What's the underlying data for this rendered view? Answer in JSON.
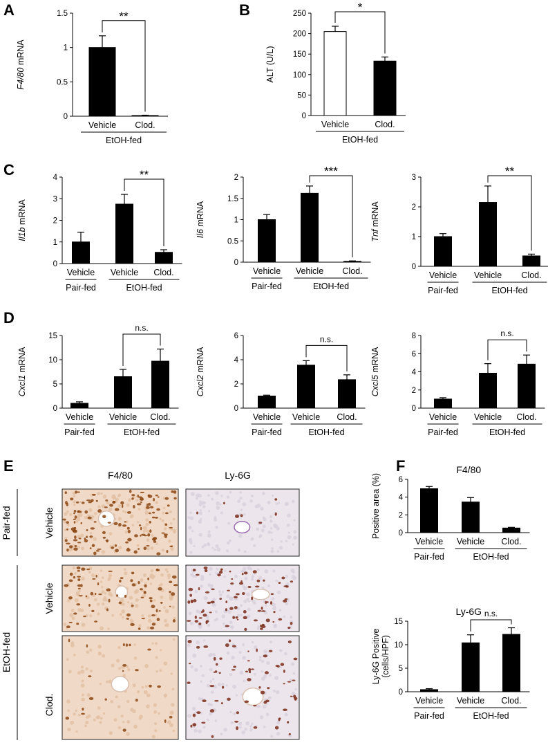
{
  "panels": {
    "A": {
      "label": "A"
    },
    "B": {
      "label": "B"
    },
    "C": {
      "label": "C"
    },
    "D": {
      "label": "D"
    },
    "E": {
      "label": "E"
    },
    "F": {
      "label": "F"
    }
  },
  "chart_data": [
    {
      "id": "A",
      "type": "bar",
      "categories": [
        "Vehicle",
        "Clod."
      ],
      "values": [
        1.0,
        0.01
      ],
      "errors": [
        0.17,
        0.005
      ],
      "ylabel_italic": "F4/80",
      "ylabel_rest": " mRNA",
      "ylim": [
        0,
        1.5
      ],
      "yticks": [
        "0",
        "0.5",
        "1",
        "1.5"
      ],
      "groups": [
        "EtOH-fed"
      ],
      "fills": [
        "#000000",
        "#000000"
      ],
      "sig": {
        "text": "**",
        "from": 0,
        "to": 1
      }
    },
    {
      "id": "B",
      "type": "bar",
      "categories": [
        "Vehicle",
        "Clod."
      ],
      "values": [
        205,
        133
      ],
      "errors": [
        13,
        10
      ],
      "ylabel_italic": "",
      "ylabel_rest": "ALT (U/L)",
      "ylim": [
        0,
        250
      ],
      "yticks": [
        "0",
        "50",
        "100",
        "150",
        "200",
        "250"
      ],
      "groups": [
        "EtOH-fed"
      ],
      "fills": [
        "#ffffff",
        "#000000"
      ],
      "sig": {
        "text": "*",
        "from": 0,
        "to": 1
      }
    },
    {
      "id": "C1",
      "type": "bar",
      "categories": [
        "Vehicle",
        "Vehicle",
        "Clod."
      ],
      "values": [
        1.0,
        2.75,
        0.52
      ],
      "errors": [
        0.45,
        0.45,
        0.12
      ],
      "ylabel_italic": "Il1b",
      "ylabel_rest": " mRNA",
      "ylim": [
        0,
        4
      ],
      "yticks": [
        "0",
        "1",
        "2",
        "3",
        "4"
      ],
      "groups": [
        "Pair-fed",
        "EtOH-fed"
      ],
      "sig": {
        "text": "**",
        "from": 1,
        "to": 2
      }
    },
    {
      "id": "C2",
      "type": "bar",
      "categories": [
        "Vehicle",
        "Vehicle",
        "Clod."
      ],
      "values": [
        1.0,
        1.62,
        0.02
      ],
      "errors": [
        0.12,
        0.17,
        0.01
      ],
      "ylabel_italic": "Il6",
      "ylabel_rest": " mRNA",
      "ylim": [
        0,
        2
      ],
      "yticks": [
        "0",
        "0.5",
        "1",
        "1.5",
        "2"
      ],
      "groups": [
        "Pair-fed",
        "EtOH-fed"
      ],
      "sig": {
        "text": "***",
        "from": 1,
        "to": 2
      }
    },
    {
      "id": "C3",
      "type": "bar",
      "categories": [
        "Vehicle",
        "Vehicle",
        "Clod."
      ],
      "values": [
        1.0,
        2.15,
        0.35
      ],
      "errors": [
        0.1,
        0.55,
        0.06
      ],
      "ylabel_italic": "Tnf",
      "ylabel_rest": " mRNA",
      "ylim": [
        0,
        3
      ],
      "yticks": [
        "0",
        "1",
        "2",
        "3"
      ],
      "groups": [
        "Pair-fed",
        "EtOH-fed"
      ],
      "sig": {
        "text": "**",
        "from": 1,
        "to": 2
      }
    },
    {
      "id": "D1",
      "type": "bar",
      "categories": [
        "Vehicle",
        "Vehicle",
        "Clod."
      ],
      "values": [
        1.0,
        6.5,
        9.7
      ],
      "errors": [
        0.3,
        1.5,
        2.5
      ],
      "ylabel_italic": "Cxcl1",
      "ylabel_rest": " mRNA",
      "ylim": [
        0,
        15
      ],
      "yticks": [
        "0",
        "5",
        "10",
        "15"
      ],
      "groups": [
        "Pair-fed",
        "EtOH-fed"
      ],
      "sig": {
        "text": "n.s.",
        "from": 1,
        "to": 2
      }
    },
    {
      "id": "D2",
      "type": "bar",
      "categories": [
        "Vehicle",
        "Vehicle",
        "Clod."
      ],
      "values": [
        1.0,
        3.55,
        2.35
      ],
      "errors": [
        0.07,
        0.37,
        0.4
      ],
      "ylabel_italic": "Cxcl2",
      "ylabel_rest": " mRNA",
      "ylim": [
        0,
        6
      ],
      "yticks": [
        "0",
        "2",
        "4",
        "6"
      ],
      "groups": [
        "Pair-fed",
        "EtOH-fed"
      ],
      "sig": {
        "text": "n.s.",
        "from": 1,
        "to": 2
      }
    },
    {
      "id": "D3",
      "type": "bar",
      "categories": [
        "Vehicle",
        "Vehicle",
        "Clod."
      ],
      "values": [
        1.0,
        3.85,
        4.85
      ],
      "errors": [
        0.15,
        1.05,
        1.0
      ],
      "ylabel_italic": "Cxcl5",
      "ylabel_rest": " mRNA",
      "ylim": [
        0,
        8
      ],
      "yticks": [
        "0",
        "2",
        "4",
        "6",
        "8"
      ],
      "groups": [
        "Pair-fed",
        "EtOH-fed"
      ],
      "sig": {
        "text": "n.s.",
        "from": 1,
        "to": 2
      }
    },
    {
      "id": "F1",
      "type": "bar",
      "title": "F4/80",
      "categories": [
        "Vehicle",
        "Vehicle",
        "Clod."
      ],
      "values": [
        4.95,
        3.45,
        0.52
      ],
      "errors": [
        0.25,
        0.5,
        0.08
      ],
      "ylabel_italic": "",
      "ylabel_rest": "Positive area (%)",
      "ylim": [
        0,
        6
      ],
      "yticks": [
        "0",
        "2",
        "4",
        "6"
      ],
      "groups": [
        "Pair-fed",
        "EtOH-fed"
      ],
      "sig": null
    },
    {
      "id": "F2",
      "type": "bar",
      "title": "Ly-6G",
      "categories": [
        "Vehicle",
        "Vehicle",
        "Clod."
      ],
      "values": [
        0.45,
        10.4,
        12.2
      ],
      "errors": [
        0.2,
        1.7,
        1.4
      ],
      "ylabel_italic": "",
      "ylabel_rest": "Ly-6G Positive",
      "ylabel2": "(cells/HPF)",
      "ylim": [
        0,
        15
      ],
      "yticks": [
        "0",
        "5",
        "10",
        "15"
      ],
      "groups": [
        "Pair-fed",
        "EtOH-fed"
      ],
      "sig": {
        "text": "n.s.",
        "from": 1,
        "to": 2
      }
    }
  ],
  "histology": {
    "col_headers": [
      "F4/80",
      "Ly-6G"
    ],
    "groups": [
      "Pair-fed",
      "EtOH-fed"
    ],
    "row_labels": [
      "Vehicle",
      "Vehicle",
      "Clod."
    ],
    "tile_colors": {
      "f480_bg": "#f0d9c6",
      "f480_dot": "#8c4712",
      "ly6g_bg": "#ece6ec",
      "ly6g_dot": "#7a2a18",
      "vessel": "#ffffff"
    }
  }
}
